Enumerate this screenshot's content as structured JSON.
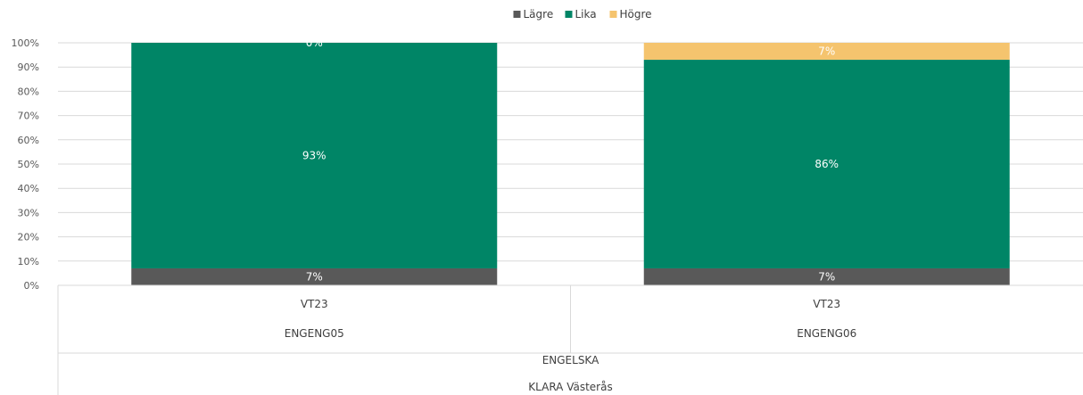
{
  "chart_data": {
    "type": "bar",
    "stacked": true,
    "percent": true,
    "legend_position": "top",
    "grid": true,
    "ylim": [
      0,
      100
    ],
    "yticks": [
      "0%",
      "10%",
      "20%",
      "30%",
      "40%",
      "50%",
      "60%",
      "70%",
      "80%",
      "90%",
      "100%"
    ],
    "categories": [
      {
        "level1": "VT23",
        "level2": "ENGENG05"
      },
      {
        "level1": "VT23",
        "level2": "ENGENG06"
      }
    ],
    "group_labels": {
      "level3": "ENGELSKA",
      "level4": "KLARA Västerås"
    },
    "series": [
      {
        "name": "Lägre",
        "color": "#595959",
        "values": [
          7,
          7
        ],
        "labels": [
          "7%",
          "7%"
        ]
      },
      {
        "name": "Lika",
        "color": "#008566",
        "values": [
          93,
          86
        ],
        "labels": [
          "93%",
          "86%"
        ]
      },
      {
        "name": "Högre",
        "color": "#F5C46E",
        "values": [
          0,
          7
        ],
        "labels": [
          "0%",
          "7%"
        ]
      }
    ]
  }
}
